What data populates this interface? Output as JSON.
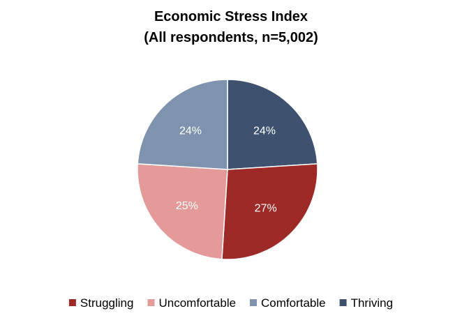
{
  "chart_data": {
    "type": "pie",
    "title": "Economic Stress Index",
    "subtitle": "(All respondents, n=5,002)",
    "categories": [
      "Struggling",
      "Uncomfortable",
      "Comfortable",
      "Thriving"
    ],
    "values": [
      27,
      25,
      24,
      24
    ],
    "data_labels": [
      "27%",
      "25%",
      "24%",
      "24%"
    ],
    "colors": [
      "#9e2a27",
      "#e39a98",
      "#7f93ae",
      "#3e5270"
    ],
    "legend_position": "bottom",
    "start_order": "clockwise from top, Thriving first"
  }
}
